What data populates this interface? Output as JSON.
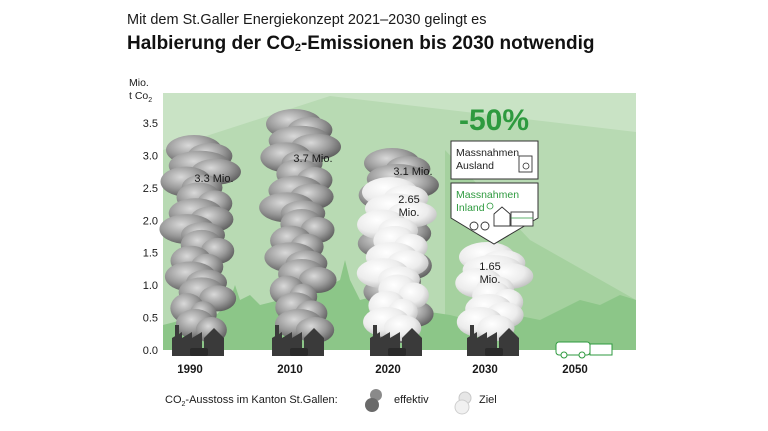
{
  "header": {
    "subtitle": "Mit dem St.Galler Energiekonzept 2021–2030 gelingt es",
    "title_pre": "Halbierung der CO",
    "title_sub": "2",
    "title_post": "-Emissionen bis 2030 notwendig"
  },
  "axis": {
    "ylabel_line1": "Mio.",
    "ylabel_line2_pre": "t Co",
    "ylabel_line2_sub": "2"
  },
  "chart_data": {
    "type": "bar",
    "categories": [
      "1990",
      "2010",
      "2020",
      "2030",
      "2050"
    ],
    "series": [
      {
        "name": "effektiv",
        "values": [
          3.3,
          3.7,
          3.1,
          null,
          null
        ]
      },
      {
        "name": "Ziel",
        "values": [
          null,
          null,
          2.65,
          1.65,
          0
        ]
      }
    ],
    "data_labels": [
      {
        "category": "1990",
        "text": "3.3 Mio."
      },
      {
        "category": "2010",
        "text": "3.7 Mio."
      },
      {
        "category": "2020",
        "text": "3.1 Mio."
      },
      {
        "category": "2020",
        "text": "2.65 Mio."
      },
      {
        "category": "2030",
        "text": "1.65 Mio."
      }
    ],
    "yticks": [
      "0.0",
      "0.5",
      "1.0",
      "1.5",
      "2.0",
      "2.5",
      "3.0",
      "3.5"
    ],
    "ylim": [
      0,
      3.5
    ],
    "reduction_label": "-50%",
    "box_ausland": "Massnahmen Ausland",
    "box_inland": "Massnahmen Inland",
    "grid": false
  },
  "legend": {
    "prefix_pre": "CO",
    "prefix_sub": "2",
    "prefix_post": "-Ausstoss im Kanton St.Gallen:",
    "effektiv": "effektiv",
    "ziel": "Ziel"
  },
  "colors": {
    "green_light": "#c9e3c5",
    "green_mid": "#9ccf96",
    "green_dark": "#6fb070",
    "accent_green": "#2e9a3f",
    "smoke_dark": "#5e5e5e",
    "smoke_light": "#d8d8d8",
    "factory": "#3a3a3a"
  }
}
